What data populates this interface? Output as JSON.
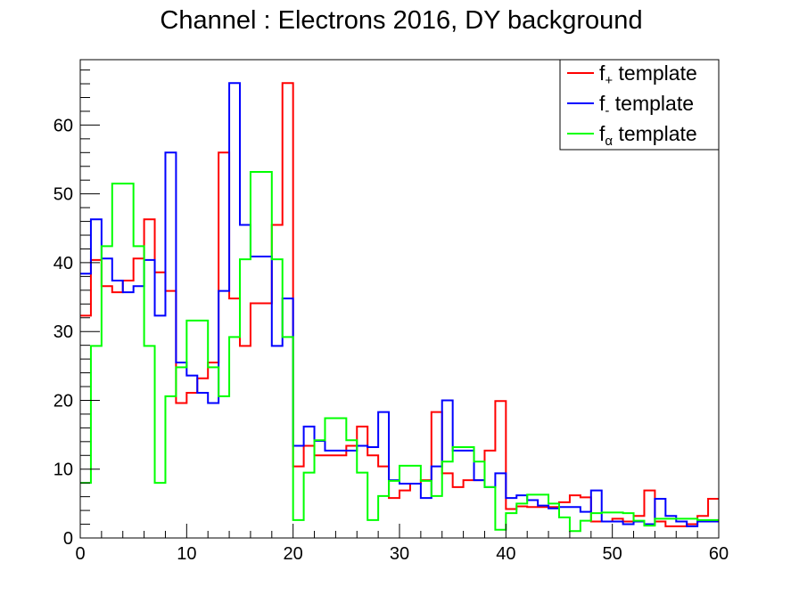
{
  "chart_data": {
    "type": "histogram",
    "title": "Channel : Electrons 2016, DY background",
    "xlabel": "",
    "ylabel": "",
    "xlim": [
      0,
      60
    ],
    "ylim": [
      0,
      69.5
    ],
    "bin_width": 1,
    "x_ticks": [
      0,
      10,
      20,
      30,
      40,
      50,
      60
    ],
    "y_ticks": [
      0,
      10,
      20,
      30,
      40,
      50,
      60
    ],
    "legend_position": "top-right",
    "series": [
      {
        "name": "f+ template",
        "legend": {
          "base": "f",
          "sub": "+",
          "rest": " template"
        },
        "color": "#ff0000",
        "values": [
          32.3,
          40.4,
          36.6,
          35.7,
          37.4,
          40.6,
          46.3,
          38.6,
          35.9,
          19.6,
          21.1,
          23.2,
          25.5,
          56.0,
          34.8,
          27.9,
          34.1,
          34.1,
          45.5,
          66.1,
          10.4,
          13.4,
          12.0,
          12.0,
          12.0,
          13.4,
          16.2,
          12.0,
          10.4,
          5.8,
          6.9,
          7.9,
          8.4,
          18.3,
          9.4,
          7.4,
          8.4,
          8.4,
          12.7,
          19.9,
          4.2,
          4.6,
          4.5,
          4.5,
          4.5,
          5.2,
          6.2,
          5.9,
          2.4,
          2.4,
          2.8,
          2.4,
          3.2,
          6.9,
          2.4,
          1.7,
          1.7,
          2.0,
          3.2,
          5.7
        ]
      },
      {
        "name": "f- template",
        "legend": {
          "base": "f",
          "sub": "-",
          "rest": " template"
        },
        "color": "#0000ff",
        "values": [
          38.4,
          46.3,
          40.6,
          37.4,
          35.7,
          36.6,
          40.4,
          32.3,
          56.0,
          25.5,
          23.6,
          21.1,
          19.6,
          35.9,
          66.1,
          45.5,
          40.9,
          40.9,
          27.9,
          34.8,
          13.4,
          16.2,
          14.1,
          12.7,
          12.7,
          12.7,
          13.4,
          13.2,
          18.3,
          8.4,
          7.9,
          7.9,
          5.8,
          10.4,
          20.0,
          12.7,
          12.7,
          8.4,
          7.4,
          9.4,
          5.8,
          6.2,
          5.5,
          4.7,
          4.3,
          4.5,
          4.5,
          3.8,
          6.9,
          2.4,
          2.4,
          2.0,
          2.4,
          2.0,
          5.7,
          3.2,
          2.4,
          1.7,
          2.4,
          2.4
        ]
      },
      {
        "name": "fα template",
        "legend": {
          "base": "f",
          "sub": "α",
          "rest": " template"
        },
        "color": "#00ff00",
        "values": [
          8.0,
          27.9,
          42.4,
          51.5,
          51.5,
          42.4,
          27.9,
          8.0,
          20.6,
          24.8,
          31.6,
          31.6,
          24.8,
          20.6,
          29.2,
          40.5,
          53.2,
          53.2,
          40.5,
          29.2,
          2.6,
          9.5,
          14.2,
          17.4,
          17.4,
          14.2,
          9.5,
          2.6,
          6.1,
          8.3,
          10.5,
          10.5,
          8.3,
          6.1,
          11.1,
          13.2,
          13.2,
          11.1,
          7.4,
          1.2,
          3.6,
          5.0,
          6.3,
          6.3,
          5.0,
          3.0,
          1.0,
          2.5,
          3.6,
          3.7,
          3.7,
          3.6,
          2.5,
          1.8,
          2.8,
          2.8,
          2.8,
          2.8,
          2.6,
          2.6
        ]
      }
    ]
  }
}
